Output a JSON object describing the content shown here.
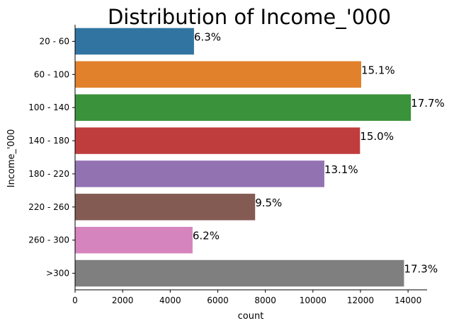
{
  "chart_data": {
    "type": "bar",
    "orientation": "horizontal",
    "title": "Distribution of Income_'000",
    "xlabel": "count",
    "ylabel": "Income_'000",
    "categories": [
      "20 - 60",
      "60 - 100",
      "100 - 140",
      "140 - 180",
      "180 - 220",
      "220 - 260",
      "260 - 300",
      ">300"
    ],
    "values": [
      5000,
      12030,
      14120,
      11980,
      10480,
      7570,
      4940,
      13830
    ],
    "percent_labels": [
      "6.3%",
      "15.1%",
      "17.7%",
      "15.0%",
      "13.1%",
      "9.5%",
      "6.2%",
      "17.3%"
    ],
    "xlim": [
      0,
      14800
    ],
    "xticks": [
      0,
      2000,
      4000,
      6000,
      8000,
      10000,
      12000,
      14000
    ],
    "xtick_labels": [
      "0",
      "2000",
      "4000",
      "6000",
      "8000",
      "10000",
      "12000",
      "14000"
    ],
    "colors": [
      "#3274a1",
      "#e1812c",
      "#3a923a",
      "#c03d3e",
      "#9372b2",
      "#845b53",
      "#d684bd",
      "#7f7f7f"
    ],
    "grid": false,
    "legend": "none"
  }
}
